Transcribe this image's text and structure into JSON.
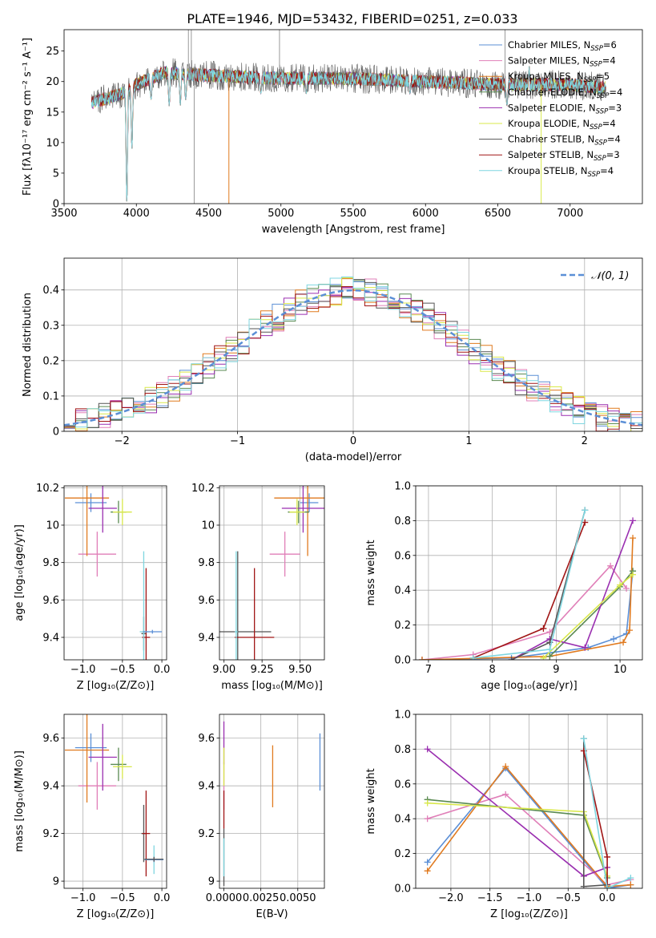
{
  "figure_title": "PLATE=1946, MJD=53432, FIBERID=0251, z=0.033",
  "series_colors": {
    "Chabrier MILES": "#5b8fd6",
    "Salpeter MILES": "#e07fb8",
    "Kroupa MILES": "#e07a1f",
    "Chabrier ELODIE": "#5a8a52",
    "Salpeter ELODIE": "#9a2fb0",
    "Kroupa ELODIE": "#d9e84a",
    "Chabrier STELIB": "#555555",
    "Salpeter STELIB": "#a01515",
    "Kroupa STELIB": "#7fd6e0"
  },
  "chart_data": [
    {
      "id": "spectrum",
      "type": "line",
      "xlabel": "wavelength [Angstrom, rest frame]",
      "ylabel": "Flux [fλ10⁻¹⁷ erg cm⁻² s⁻¹ A⁻¹]",
      "xlim": [
        3500,
        7500
      ],
      "ylim": [
        0,
        28.5
      ],
      "xticks": [
        3500,
        4000,
        4500,
        5000,
        5500,
        6000,
        6500,
        7000
      ],
      "yticks": [
        0,
        5,
        10,
        15,
        20,
        25
      ],
      "legend_position": "top-right",
      "legend": [
        {
          "label": "Chabrier MILES, N",
          "sub": "SSP",
          "tail": "=6",
          "color": "#5b8fd6"
        },
        {
          "label": "Salpeter MILES, N",
          "sub": "SSP",
          "tail": "=4",
          "color": "#e07fb8"
        },
        {
          "label": "Kroupa MILES, N",
          "sub": "SSP",
          "tail": "=5",
          "color": "#e07a1f"
        },
        {
          "label": "Chabrier ELODIE, N",
          "sub": "SSP",
          "tail": "=4",
          "color": "#5a8a52"
        },
        {
          "label": "Salpeter ELODIE, N",
          "sub": "SSP",
          "tail": "=3",
          "color": "#9a2fb0"
        },
        {
          "label": "Kroupa ELODIE, N",
          "sub": "SSP",
          "tail": "=4",
          "color": "#d9e84a"
        },
        {
          "label": "Chabrier STELIB, N",
          "sub": "SSP",
          "tail": "=4",
          "color": "#555555"
        },
        {
          "label": "Salpeter STELIB, N",
          "sub": "SSP",
          "tail": "=3",
          "color": "#a01515"
        },
        {
          "label": "Kroupa STELIB, N",
          "sub": "SSP",
          "tail": "=4",
          "color": "#7fd6e0"
        }
      ],
      "wavelength_range": [
        3690,
        7250
      ],
      "continuum": [
        [
          3690,
          16.5
        ],
        [
          3900,
          18
        ],
        [
          4000,
          19.5
        ],
        [
          4200,
          21.5
        ],
        [
          4500,
          21
        ],
        [
          5000,
          20.5
        ],
        [
          5500,
          20.5
        ],
        [
          6000,
          20
        ],
        [
          6500,
          19.5
        ],
        [
          7000,
          19.5
        ],
        [
          7250,
          19
        ]
      ],
      "absorption_lines": [
        [
          3934,
          0
        ],
        [
          3969,
          9
        ],
        [
          4102,
          17
        ],
        [
          4227,
          16
        ],
        [
          4304,
          16
        ],
        [
          4341,
          17
        ],
        [
          4861,
          18
        ],
        [
          5175,
          18
        ],
        [
          5892,
          18
        ],
        [
          6563,
          16
        ]
      ],
      "emission_lines": [
        [
          3728,
          17.5
        ],
        [
          5007,
          22
        ],
        [
          6584,
          20
        ],
        [
          6717,
          22.5
        ]
      ],
      "outlier_spikes": [
        [
          4360,
          28.5
        ],
        [
          4380,
          28.5
        ],
        [
          4400,
          0
        ],
        [
          4640,
          0
        ],
        [
          4990,
          28.5
        ],
        [
          6550,
          28.5
        ],
        [
          6800,
          0
        ]
      ]
    },
    {
      "id": "residuals",
      "type": "bar",
      "xlabel": "(data-model)/error",
      "ylabel": "Normed distribution",
      "xlim": [
        -2.5,
        2.5
      ],
      "ylim": [
        0,
        0.49
      ],
      "xticks": [
        -2,
        -1,
        0,
        1,
        2
      ],
      "xticklabels": [
        "−2",
        "−1",
        "0",
        "1",
        "2"
      ],
      "yticks": [
        0,
        0.1,
        0.2,
        0.3,
        0.4
      ],
      "legend": {
        "label": "𝒩(0, 1)",
        "color": "#5b8fd6",
        "style": "dashed"
      },
      "legend_position": "top-right",
      "bin_width": 0.1
    },
    {
      "id": "age_vs_Z",
      "type": "scatter",
      "xlabel": "Z [log₁₀(Z/Z⊙)]",
      "ylabel": "age  [log₁₀(age/yr)]",
      "xlim": [
        -1.24,
        0.06
      ],
      "ylim": [
        9.28,
        10.21
      ],
      "xticks": [
        -1.0,
        -0.5,
        0.0
      ],
      "xticklabels": [
        "−1.0",
        "−0.5",
        "0.0"
      ],
      "yticks": [
        9.4,
        9.6,
        9.8,
        10.0,
        10.2
      ],
      "points": [
        {
          "color": "#5b8fd6",
          "x": -0.9,
          "xerr": 0.2,
          "y": 10.12,
          "yerr": 0.05
        },
        {
          "color": "#e07fb8",
          "x": -0.82,
          "xerr": 0.24,
          "y": 9.845,
          "yerr": 0.12
        },
        {
          "color": "#e07a1f",
          "x": -0.95,
          "xerr": 0.28,
          "y": 10.145,
          "yerr": 0.31
        },
        {
          "color": "#5a8a52",
          "x": -0.55,
          "xerr": 0.1,
          "y": 10.07,
          "yerr": 0.06
        },
        {
          "color": "#9a2fb0",
          "x": -0.75,
          "xerr": 0.18,
          "y": 10.09,
          "yerr": 0.13
        },
        {
          "color": "#d9e84a",
          "x": -0.5,
          "xerr": 0.12,
          "y": 10.07,
          "yerr": 0.07
        },
        {
          "color": "#555555",
          "x": -0.23,
          "xerr": 0.03,
          "y": 9.42,
          "yerr": 0.09
        },
        {
          "color": "#a01515",
          "x": -0.2,
          "xerr": 0.05,
          "y": 9.4,
          "yerr": 0.37
        },
        {
          "color": "#7fd6e0",
          "x": -0.23,
          "xerr": 0.05,
          "y": 9.43,
          "yerr": 0.43
        },
        {
          "color": "#5b8fd6",
          "x": -0.12,
          "xerr": 0.12,
          "y": 9.43,
          "yerr": 0.01
        }
      ]
    },
    {
      "id": "age_vs_mass",
      "type": "scatter",
      "xlabel": "mass [log₁₀(M/M⊙)]",
      "ylabel": "",
      "xlim": [
        8.97,
        9.66
      ],
      "ylim": [
        9.28,
        10.21
      ],
      "xticks": [
        9.0,
        9.25,
        9.5
      ],
      "xticklabels": [
        "9.00",
        "9.25",
        "9.50"
      ],
      "yticks": [
        9.4,
        9.6,
        9.8,
        10.0,
        10.2
      ],
      "points": [
        {
          "color": "#5b8fd6",
          "x": 9.56,
          "xerr": 0.06,
          "y": 10.12,
          "yerr": 0.05
        },
        {
          "color": "#e07fb8",
          "x": 9.4,
          "xerr": 0.1,
          "y": 9.845,
          "yerr": 0.12
        },
        {
          "color": "#e07a1f",
          "x": 9.55,
          "xerr": 0.22,
          "y": 10.145,
          "yerr": 0.31
        },
        {
          "color": "#5a8a52",
          "x": 9.49,
          "xerr": 0.07,
          "y": 10.07,
          "yerr": 0.06
        },
        {
          "color": "#9a2fb0",
          "x": 9.52,
          "xerr": 0.14,
          "y": 10.09,
          "yerr": 0.13
        },
        {
          "color": "#d9e84a",
          "x": 9.48,
          "xerr": 0.05,
          "y": 10.07,
          "yerr": 0.07
        },
        {
          "color": "#555555",
          "x": 9.09,
          "xerr": 0.22,
          "y": 9.43,
          "yerr": 0.43
        },
        {
          "color": "#a01515",
          "x": 9.2,
          "xerr": 0.13,
          "y": 9.4,
          "yerr": 0.37
        },
        {
          "color": "#7fd6e0",
          "x": 9.08,
          "xerr": 0.01,
          "y": 9.43,
          "yerr": 0.43
        }
      ]
    },
    {
      "id": "weight_vs_age",
      "type": "line",
      "xlabel": "age  [log₁₀(age/yr)]",
      "ylabel": "mass weight",
      "xlim": [
        6.8,
        10.35
      ],
      "ylim": [
        0,
        1.0
      ],
      "xticks": [
        7,
        8,
        9,
        10
      ],
      "yticks": [
        0,
        0.2,
        0.4,
        0.6,
        0.8,
        1.0
      ],
      "series": [
        {
          "color": "#5b8fd6",
          "x": [
            6.9,
            8.3,
            8.9,
            9.5,
            9.9,
            10.1,
            10.2
          ],
          "y": [
            0.0,
            0.01,
            0.04,
            0.07,
            0.12,
            0.15,
            0.51
          ]
        },
        {
          "color": "#e07fb8",
          "x": [
            6.9,
            7.7,
            8.9,
            9.85,
            10.1
          ],
          "y": [
            0.0,
            0.03,
            0.16,
            0.54,
            0.41
          ]
        },
        {
          "color": "#e07a1f",
          "x": [
            6.9,
            8.9,
            10.05,
            10.15,
            10.2
          ],
          "y": [
            0.0,
            0.02,
            0.1,
            0.17,
            0.7
          ]
        },
        {
          "color": "#5a8a52",
          "x": [
            8.9,
            10.0,
            10.2
          ],
          "y": [
            0.02,
            0.42,
            0.51
          ]
        },
        {
          "color": "#9a2fb0",
          "x": [
            8.3,
            8.9,
            9.45,
            10.2
          ],
          "y": [
            0.0,
            0.12,
            0.07,
            0.8
          ]
        },
        {
          "color": "#d9e84a",
          "x": [
            8.8,
            10.0,
            10.2
          ],
          "y": [
            0.01,
            0.43,
            0.49
          ]
        },
        {
          "color": "#555555",
          "x": [
            8.3,
            8.9,
            9.45
          ],
          "y": [
            0.0,
            0.1,
            0.86
          ]
        },
        {
          "color": "#a01515",
          "x": [
            7.7,
            8.8,
            9.45
          ],
          "y": [
            0.01,
            0.18,
            0.79
          ]
        },
        {
          "color": "#7fd6e0",
          "x": [
            7.7,
            8.9,
            9.45
          ],
          "y": [
            0.01,
            0.06,
            0.86
          ]
        }
      ]
    },
    {
      "id": "mass_vs_Z",
      "type": "scatter",
      "xlabel": "Z [log₁₀(Z/Z⊙)]",
      "ylabel": "mass [log₁₀(M/M⊙)]",
      "xlim": [
        -1.24,
        0.06
      ],
      "ylim": [
        8.97,
        9.7
      ],
      "xticks": [
        -1.0,
        -0.5,
        0.0
      ],
      "xticklabels": [
        "−1.0",
        "−0.5",
        "0.0"
      ],
      "yticks": [
        9.0,
        9.2,
        9.4,
        9.6
      ],
      "points": [
        {
          "color": "#5b8fd6",
          "x": -0.9,
          "xerr": 0.2,
          "y": 9.56,
          "yerr": 0.06
        },
        {
          "color": "#e07fb8",
          "x": -0.82,
          "xerr": 0.24,
          "y": 9.4,
          "yerr": 0.1
        },
        {
          "color": "#e07a1f",
          "x": -0.95,
          "xerr": 0.28,
          "y": 9.55,
          "yerr": 0.22
        },
        {
          "color": "#5a8a52",
          "x": -0.55,
          "xerr": 0.1,
          "y": 9.49,
          "yerr": 0.07
        },
        {
          "color": "#9a2fb0",
          "x": -0.75,
          "xerr": 0.18,
          "y": 9.52,
          "yerr": 0.14
        },
        {
          "color": "#d9e84a",
          "x": -0.5,
          "xerr": 0.12,
          "y": 9.48,
          "yerr": 0.05
        },
        {
          "color": "#555555",
          "x": -0.23,
          "xerr": 0.03,
          "y": 9.2,
          "yerr": 0.12
        },
        {
          "color": "#a01515",
          "x": -0.2,
          "xerr": 0.05,
          "y": 9.2,
          "yerr": 0.18
        },
        {
          "color": "#7fd6e0",
          "x": -0.1,
          "xerr": 0.12,
          "y": 9.09,
          "yerr": 0.06
        },
        {
          "color": "#5b8fd6",
          "x": -0.1,
          "xerr": 0.12,
          "y": 9.09,
          "yerr": 0.01
        },
        {
          "color": "#555555",
          "x": -0.1,
          "xerr": 0.12,
          "y": 9.092,
          "yerr": 0.01
        }
      ]
    },
    {
      "id": "mass_vs_EBV",
      "type": "scatter",
      "xlabel": "E(B-V)",
      "ylabel": "",
      "xlim": [
        -0.0003,
        0.0068
      ],
      "ylim": [
        8.97,
        9.7
      ],
      "xticks": [
        0.0,
        0.0025,
        0.005
      ],
      "xticklabels": [
        "0.0000",
        "0.0025",
        "0.0050"
      ],
      "yticks": [
        9.0,
        9.2,
        9.4,
        9.6
      ],
      "points": [
        {
          "color": "#5b8fd6",
          "x": 0.0065,
          "xerr": 0,
          "y": 9.5,
          "yerr": 0.12
        },
        {
          "color": "#e07a1f",
          "x": 0.0033,
          "xerr": 0,
          "y": 9.44,
          "yerr": 0.13
        },
        {
          "color": "#9a2fb0",
          "x": 0.0,
          "xerr": 0,
          "y": 9.58,
          "yerr": 0.09
        },
        {
          "color": "#e07fb8",
          "x": 0.0,
          "xerr": 0,
          "y": 9.4,
          "yerr": 0.1
        },
        {
          "color": "#d9e84a",
          "x": 0.0,
          "xerr": 0,
          "y": 9.48,
          "yerr": 0.08
        },
        {
          "color": "#a01515",
          "x": 0.0,
          "xerr": 0,
          "y": 9.3,
          "yerr": 0.08
        },
        {
          "color": "#555555",
          "x": 0.0,
          "xerr": 0,
          "y": 9.1,
          "yerr": 0.12
        },
        {
          "color": "#7fd6e0",
          "x": 0.0,
          "xerr": 0,
          "y": 9.1,
          "yerr": 0.08
        }
      ]
    },
    {
      "id": "weight_vs_Z",
      "type": "line",
      "xlabel": "Z [log₁₀(Z/Z⊙)]",
      "ylabel": "mass weight",
      "xlim": [
        -2.45,
        0.45
      ],
      "ylim": [
        0,
        1.0
      ],
      "xticks": [
        -2.0,
        -1.5,
        -1.0,
        -0.5,
        0.0
      ],
      "xticklabels": [
        "−2.0",
        "−1.5",
        "−1.0",
        "−0.5",
        "0.0"
      ],
      "yticks": [
        0,
        0.2,
        0.4,
        0.6,
        0.8,
        1.0
      ],
      "series": [
        {
          "color": "#5b8fd6",
          "x": [
            -2.3,
            -1.3,
            0.0,
            0.3
          ],
          "y": [
            0.15,
            0.69,
            0.0,
            0.02
          ]
        },
        {
          "color": "#e07fb8",
          "x": [
            -2.3,
            -1.3,
            0.0,
            0.3
          ],
          "y": [
            0.4,
            0.54,
            0.02,
            0.05
          ]
        },
        {
          "color": "#e07a1f",
          "x": [
            -2.3,
            -1.3,
            0.0,
            0.3
          ],
          "y": [
            0.1,
            0.7,
            0.01,
            0.02
          ]
        },
        {
          "color": "#5a8a52",
          "x": [
            -2.3,
            -0.3,
            0.0
          ],
          "y": [
            0.51,
            0.42,
            0.06
          ]
        },
        {
          "color": "#9a2fb0",
          "x": [
            -2.3,
            -0.3,
            0.0
          ],
          "y": [
            0.8,
            0.07,
            0.12
          ]
        },
        {
          "color": "#d9e84a",
          "x": [
            -2.3,
            -0.3,
            0.0
          ],
          "y": [
            0.49,
            0.44,
            0.07
          ]
        },
        {
          "color": "#555555",
          "x": [
            -0.3,
            -0.3,
            0.0
          ],
          "y": [
            0.86,
            0.01,
            0.02
          ]
        },
        {
          "color": "#a01515",
          "x": [
            -0.3,
            0.0,
            0.0
          ],
          "y": [
            0.79,
            0.18,
            0.0
          ]
        },
        {
          "color": "#7fd6e0",
          "x": [
            -0.3,
            0.0,
            0.3
          ],
          "y": [
            0.86,
            0.0,
            0.06
          ]
        }
      ]
    }
  ]
}
